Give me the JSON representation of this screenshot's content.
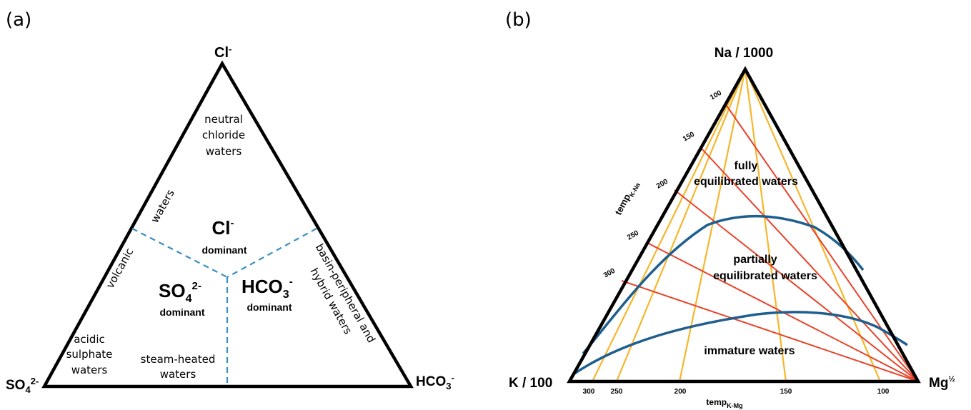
{
  "panel_a": {
    "label": "(a)",
    "vertices": {
      "top": "Cl",
      "top_sup": "-",
      "left": "SO",
      "left_sub": "4",
      "left_sup": "2-",
      "right": "HCO",
      "right_sub": "3",
      "right_sup": "-"
    },
    "regions": {
      "neutral": [
        "neutral",
        "chloride",
        "waters"
      ],
      "volcanic_word": "volcanic",
      "waters_word": "waters",
      "cl_main": "Cl",
      "cl_sup": "-",
      "cl_sub": "dominant",
      "so4_main": "SO",
      "so4_sub4": "4",
      "so4_sup": "2-",
      "so4_dom": "dominant",
      "hco3_main": "HCO",
      "hco3_sub3": "3",
      "hco3_sup": "-",
      "hco3_dom": "dominant",
      "basin": "basin-peripheral and",
      "hybrid": "hybrid waters",
      "acidic": [
        "acidic",
        "sulphate",
        "waters"
      ],
      "steam": [
        "steam-heated",
        "waters"
      ]
    },
    "colors": {
      "outline": "#000000",
      "dashed": "#3a8fc4"
    }
  },
  "panel_b": {
    "label": "(b)",
    "vertices": {
      "top": "Na / 1000",
      "left": "K / 100",
      "right": "Mg",
      "right_sup": "½"
    },
    "axis_left_title": "temp",
    "axis_left_sub": "K-Na",
    "axis_bottom_title": "temp",
    "axis_bottom_sub": "K-Mg",
    "left_ticks": [
      "100",
      "150",
      "200",
      "250",
      "300"
    ],
    "bottom_ticks": [
      "300",
      "250",
      "200",
      "150",
      "100"
    ],
    "regions": {
      "full": [
        "fully",
        "equilibrated waters"
      ],
      "partial": [
        "partially",
        "equilibrated waters"
      ],
      "immature": "immature waters"
    },
    "colors": {
      "outline": "#000000",
      "red": "#e8432a",
      "orange": "#f5b62b",
      "blue": "#1f5f8f"
    }
  }
}
